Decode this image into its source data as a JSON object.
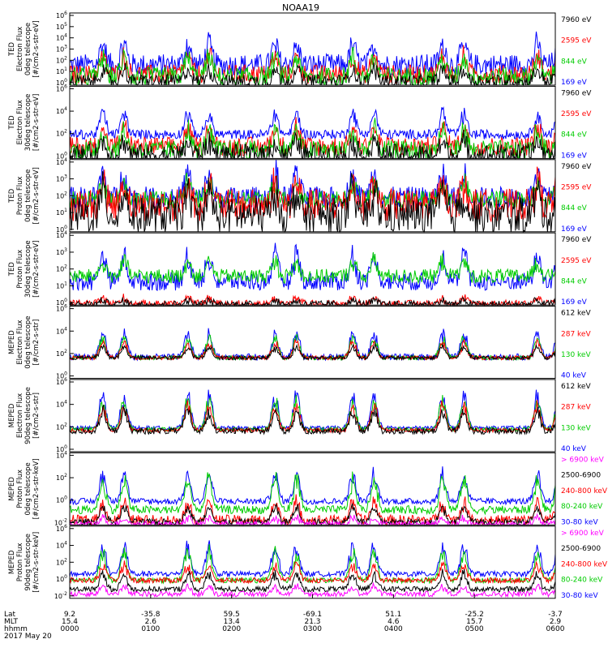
{
  "title": "NOAA19",
  "colors": {
    "blue": "#0000ff",
    "red": "#ff0000",
    "green": "#00cc00",
    "black": "#000000",
    "magenta": "#ff00ff",
    "frame": "#000000"
  },
  "chart_data": [
    {
      "type": "line",
      "id": "ted-e-0",
      "ylabel": [
        "TED",
        "Electron Flux",
        "0deg telescope",
        "[#/cm2-s-str-eV]"
      ],
      "yscale": "log",
      "ylim": [
        1,
        1000000
      ],
      "ytick_labels": [
        "10^0",
        "10^1",
        "10^2",
        "10^3",
        "10^4",
        "10^5",
        "10^6"
      ],
      "legend": [
        {
          "label": "7960 eV",
          "color": "#000000"
        },
        {
          "label": "2595 eV",
          "color": "#ff0000"
        },
        {
          "label": "844 eV",
          "color": "#00cc00"
        },
        {
          "label": "169 eV",
          "color": "#0000ff"
        }
      ],
      "series": [
        {
          "color": "#0000ff",
          "base": 50,
          "amp": 1.6,
          "noise": 0.9,
          "order": 0
        },
        {
          "color": "#ff0000",
          "base": 8,
          "amp": 1.4,
          "noise": 0.8,
          "order": 1
        },
        {
          "color": "#00cc00",
          "base": 5,
          "amp": 1.5,
          "noise": 0.8,
          "order": 2
        },
        {
          "color": "#000000",
          "base": 2,
          "amp": 1.0,
          "noise": 0.6,
          "order": 3
        }
      ]
    },
    {
      "type": "line",
      "id": "ted-e-30",
      "ylabel": [
        "TED",
        "Electron Flux",
        "30deg telescope",
        "[#/cm2-s-str-eV]"
      ],
      "yscale": "log",
      "ylim": [
        1,
        1000000
      ],
      "ytick_labels": [
        "10^0",
        "10^2",
        "10^4",
        "10^6"
      ],
      "legend": [
        {
          "label": "7960 eV",
          "color": "#000000"
        },
        {
          "label": "2595 eV",
          "color": "#ff0000"
        },
        {
          "label": "844 eV",
          "color": "#00cc00"
        },
        {
          "label": "169 eV",
          "color": "#0000ff"
        }
      ],
      "series": [
        {
          "color": "#0000ff",
          "base": 100,
          "amp": 1.7,
          "noise": 0.4,
          "order": 0
        },
        {
          "color": "#ff0000",
          "base": 10,
          "amp": 1.5,
          "noise": 0.8,
          "order": 1
        },
        {
          "color": "#00cc00",
          "base": 5,
          "amp": 1.5,
          "noise": 0.8,
          "order": 2
        },
        {
          "color": "#000000",
          "base": 2,
          "amp": 1.0,
          "noise": 0.9,
          "order": 3
        }
      ]
    },
    {
      "type": "line",
      "id": "ted-p-0",
      "ylabel": [
        "TED",
        "Proton Flux",
        "0deg telescope",
        "[#/cm2-s-str-eV]"
      ],
      "yscale": "log",
      "ylim": [
        1,
        10000
      ],
      "ytick_labels": [
        "10^0",
        "10^1",
        "10^2",
        "10^3",
        "10^4"
      ],
      "legend": [
        {
          "label": "7960 eV",
          "color": "#000000"
        },
        {
          "label": "2595 eV",
          "color": "#ff0000"
        },
        {
          "label": "844 eV",
          "color": "#00cc00"
        },
        {
          "label": "169 eV",
          "color": "#0000ff"
        }
      ],
      "series": [
        {
          "color": "#0000ff",
          "base": 80,
          "amp": 1.3,
          "noise": 0.6,
          "order": 0
        },
        {
          "color": "#00cc00",
          "base": 60,
          "amp": 0.9,
          "noise": 0.5,
          "order": 1
        },
        {
          "color": "#ff0000",
          "base": 30,
          "amp": 1.2,
          "noise": 0.9,
          "order": 2
        },
        {
          "color": "#000000",
          "base": 8,
          "amp": 1.2,
          "noise": 1.0,
          "order": 3
        }
      ]
    },
    {
      "type": "line",
      "id": "ted-p-30",
      "ylabel": [
        "TED",
        "Proton Flux",
        "30deg telescope",
        "[#/cm2-s-str-eV]"
      ],
      "yscale": "log",
      "ylim": [
        1,
        10000
      ],
      "ytick_labels": [
        "10^0",
        "10^1",
        "10^2",
        "10^3",
        "10^4"
      ],
      "legend": [
        {
          "label": "7960 eV",
          "color": "#000000"
        },
        {
          "label": "2595 eV",
          "color": "#ff0000"
        },
        {
          "label": "844 eV",
          "color": "#00cc00"
        },
        {
          "label": "169 eV",
          "color": "#0000ff"
        }
      ],
      "series": [
        {
          "color": "#0000ff",
          "base": 20,
          "amp": 1.4,
          "noise": 0.5,
          "order": 0
        },
        {
          "color": "#00cc00",
          "base": 40,
          "amp": 0.8,
          "noise": 0.4,
          "order": 1
        },
        {
          "color": "#ff0000",
          "base": 1.2,
          "amp": 0.3,
          "noise": 0.2,
          "order": 2
        },
        {
          "color": "#000000",
          "base": 1.1,
          "amp": 0.2,
          "noise": 0.2,
          "order": 3
        }
      ]
    },
    {
      "type": "line",
      "id": "meped-e-0",
      "ylabel": [
        "MEPED",
        "Electron Flux",
        "0deg telescope",
        "[#/cm2-s-str]"
      ],
      "yscale": "log",
      "ylim": [
        1,
        10000000
      ],
      "ytick_labels": [
        "10^0",
        "10^2",
        "10^4",
        "10^6"
      ],
      "legend": [
        {
          "label": "612 keV",
          "color": "#000000"
        },
        {
          "label": "287 keV",
          "color": "#ff0000"
        },
        {
          "label": "130 keV",
          "color": "#00cc00"
        },
        {
          "label": "40 keV",
          "color": "#0000ff"
        }
      ],
      "series": [
        {
          "color": "#0000ff",
          "base": 120,
          "amp": 2.2,
          "noise": 0.3,
          "order": 0
        },
        {
          "color": "#00cc00",
          "base": 100,
          "amp": 1.8,
          "noise": 0.2,
          "order": 1
        },
        {
          "color": "#ff0000",
          "base": 100,
          "amp": 1.4,
          "noise": 0.2,
          "order": 2
        },
        {
          "color": "#000000",
          "base": 100,
          "amp": 1.0,
          "noise": 0.2,
          "order": 3
        }
      ]
    },
    {
      "type": "line",
      "id": "meped-e-90",
      "ylabel": [
        "MEPED",
        "Electron Flux",
        "90deg telescope",
        "[#/cm2-s-str]"
      ],
      "yscale": "log",
      "ylim": [
        1,
        10000000
      ],
      "ytick_labels": [
        "10^0",
        "10^2",
        "10^4",
        "10^6"
      ],
      "legend": [
        {
          "label": "612 keV",
          "color": "#000000"
        },
        {
          "label": "287 keV",
          "color": "#ff0000"
        },
        {
          "label": "130 keV",
          "color": "#00cc00"
        },
        {
          "label": "40 keV",
          "color": "#0000ff"
        }
      ],
      "series": [
        {
          "color": "#0000ff",
          "base": 200,
          "amp": 3.0,
          "noise": 0.2,
          "order": 0
        },
        {
          "color": "#00cc00",
          "base": 150,
          "amp": 2.7,
          "noise": 0.2,
          "order": 1
        },
        {
          "color": "#ff0000",
          "base": 120,
          "amp": 2.3,
          "noise": 0.2,
          "order": 2
        },
        {
          "color": "#000000",
          "base": 100,
          "amp": 1.8,
          "noise": 0.3,
          "order": 3
        }
      ]
    },
    {
      "type": "line",
      "id": "meped-p-0",
      "ylabel": [
        "MEPED",
        "Proton Flux",
        "0deg telescope",
        "[#/cm2-s-str-keV]"
      ],
      "yscale": "log",
      "ylim": [
        0.01,
        100000
      ],
      "ytick_labels": [
        "10^-2",
        "10^0",
        "10^2",
        "10^4"
      ],
      "legend": [
        {
          "label": "> 6900 keV",
          "color": "#ff00ff"
        },
        {
          "label": "2500-6900",
          "color": "#000000"
        },
        {
          "label": "240-800 keV",
          "color": "#ff0000"
        },
        {
          "label": "80-240 keV",
          "color": "#00cc00"
        },
        {
          "label": "30-80 keV",
          "color": "#0000ff"
        }
      ],
      "series": [
        {
          "color": "#0000ff",
          "base": 2,
          "amp": 2.5,
          "noise": 0.3,
          "order": 0
        },
        {
          "color": "#00cc00",
          "base": 0.3,
          "amp": 2.8,
          "noise": 0.4,
          "order": 1
        },
        {
          "color": "#ff0000",
          "base": 0.03,
          "amp": 1.6,
          "noise": 0.5,
          "order": 2
        },
        {
          "color": "#000000",
          "base": 0.02,
          "amp": 1.4,
          "noise": 0.3,
          "order": 3
        },
        {
          "color": "#ff00ff",
          "base": 0.012,
          "amp": 0.6,
          "noise": 0.3,
          "order": 4
        }
      ]
    },
    {
      "type": "line",
      "id": "meped-p-90",
      "ylabel": [
        "MEPED",
        "Proton Flux",
        "90deg telescope",
        "[#/cm2-s-str-keV]"
      ],
      "yscale": "log",
      "ylim": [
        0.01,
        1000000
      ],
      "ytick_labels": [
        "10^-2",
        "10^0",
        "10^2",
        "10^4",
        "10^6"
      ],
      "legend": [
        {
          "label": "> 6900 keV",
          "color": "#ff00ff"
        },
        {
          "label": "2500-6900",
          "color": "#000000"
        },
        {
          "label": "240-800 keV",
          "color": "#ff0000"
        },
        {
          "label": "80-240 keV",
          "color": "#00cc00"
        },
        {
          "label": "30-80 keV",
          "color": "#0000ff"
        }
      ],
      "series": [
        {
          "color": "#0000ff",
          "base": 5,
          "amp": 3.0,
          "noise": 0.3,
          "order": 0
        },
        {
          "color": "#00cc00",
          "base": 1,
          "amp": 3.0,
          "noise": 0.3,
          "order": 1
        },
        {
          "color": "#ff0000",
          "base": 1,
          "amp": 1.6,
          "noise": 0.3,
          "order": 2
        },
        {
          "color": "#000000",
          "base": 0.1,
          "amp": 1.6,
          "noise": 0.3,
          "order": 3
        },
        {
          "color": "#ff00ff",
          "base": 0.03,
          "amp": 0.8,
          "noise": 0.3,
          "order": 4
        }
      ]
    }
  ],
  "time_axis": {
    "row_labels": [
      "Lat",
      "MLT",
      "hhmm",
      "2017 May 20"
    ],
    "ticks": [
      {
        "lat": "9.2",
        "mlt": "15.4",
        "hhmm": "0000"
      },
      {
        "lat": "-35.8",
        "mlt": "2.6",
        "hhmm": "0100"
      },
      {
        "lat": "59.5",
        "mlt": "13.4",
        "hhmm": "0200"
      },
      {
        "lat": "-69.1",
        "mlt": "21.3",
        "hhmm": "0300"
      },
      {
        "lat": "51.1",
        "mlt": "4.6",
        "hhmm": "0400"
      },
      {
        "lat": "-25.2",
        "mlt": "15.7",
        "hhmm": "0500"
      },
      {
        "lat": "-3.7",
        "mlt": "2.9",
        "hhmm": "0600"
      }
    ]
  },
  "passes": [
    0.09,
    0.265,
    0.445,
    0.605,
    0.79,
    0.985
  ]
}
